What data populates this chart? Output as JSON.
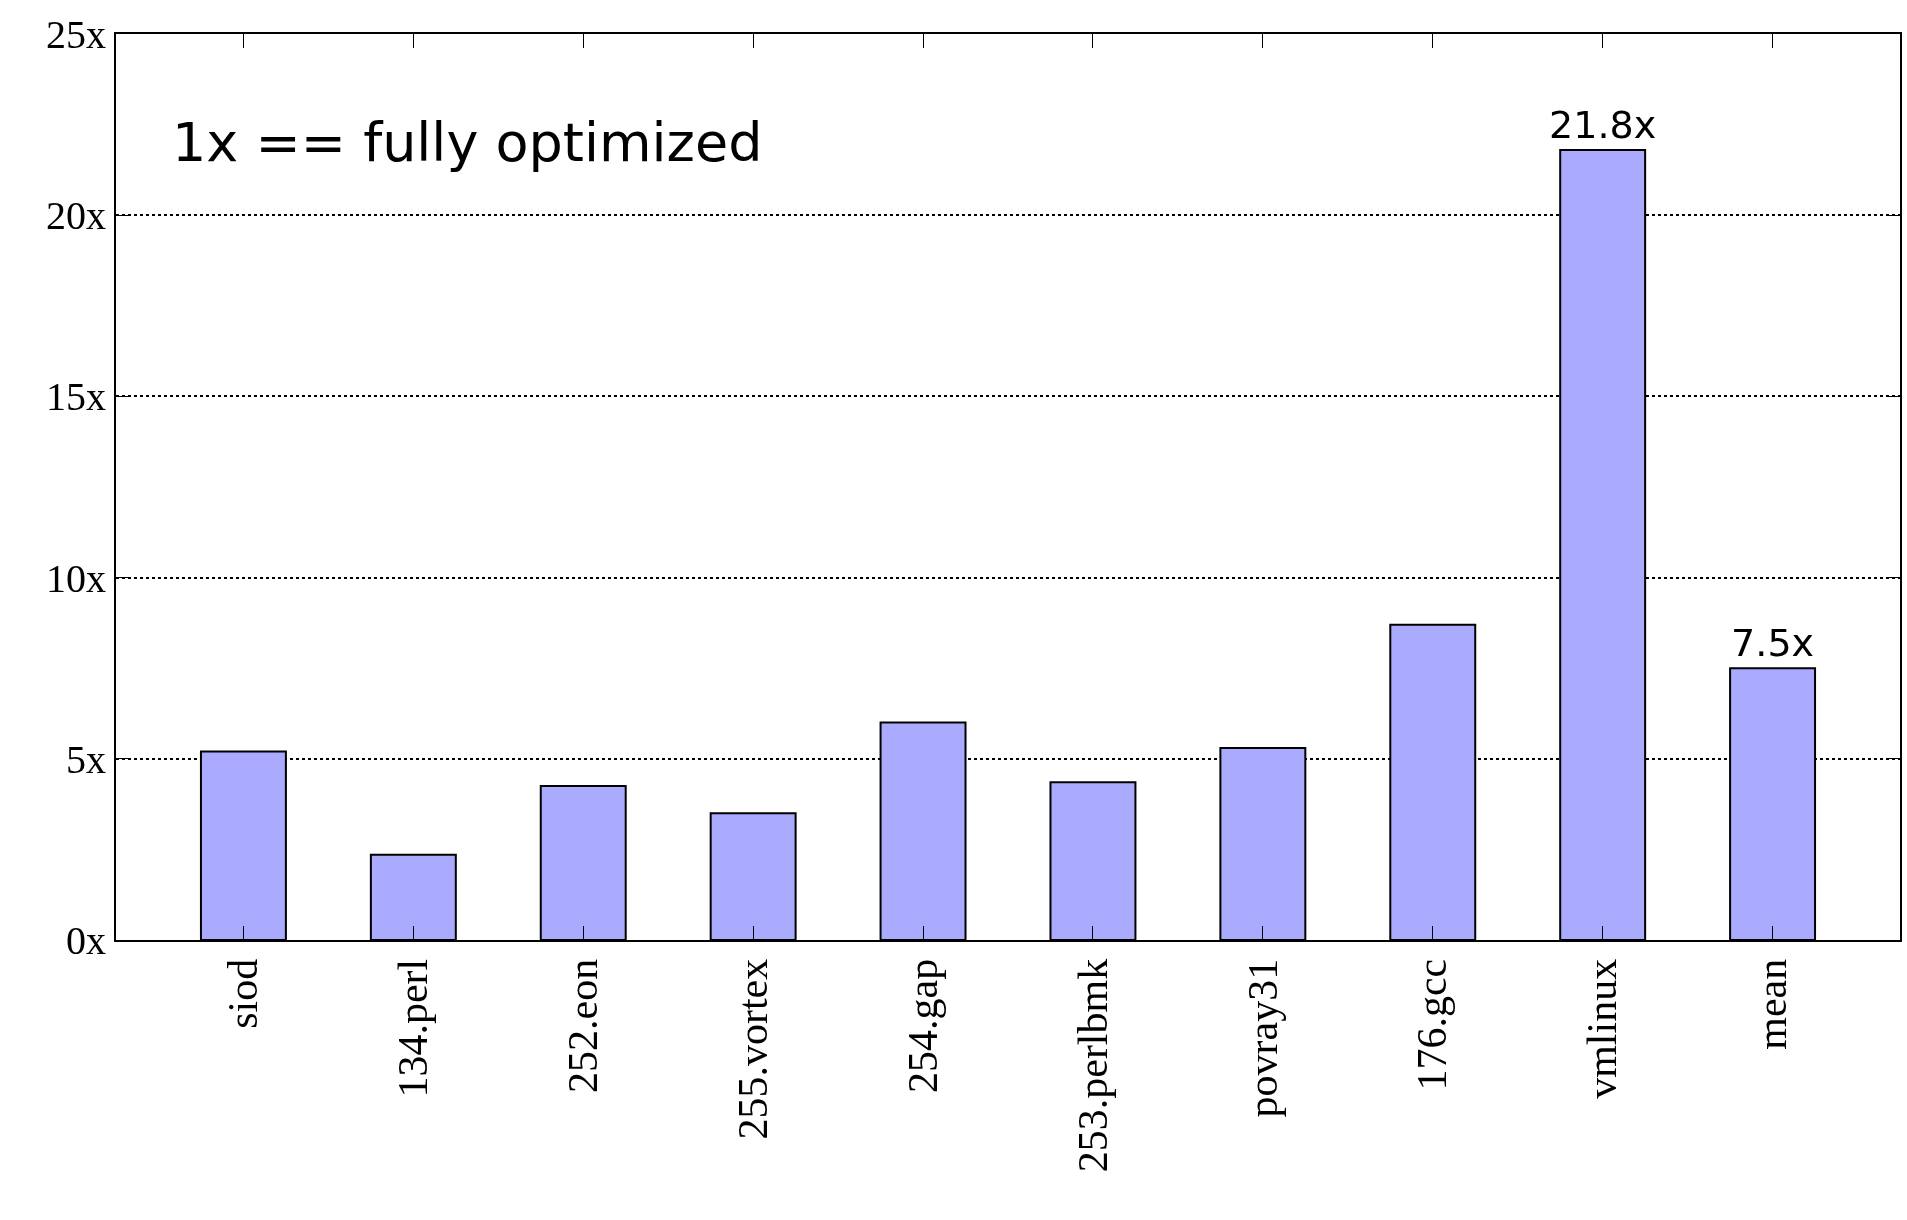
{
  "chart_data": {
    "type": "bar",
    "categories": [
      "siod",
      "134.perl",
      "252.eon",
      "255.vortex",
      "254.gap",
      "253.perlbmk",
      "povray31",
      "176.gcc",
      "vmlinux",
      "mean"
    ],
    "values": [
      5.2,
      2.35,
      4.25,
      3.5,
      6.0,
      4.35,
      5.3,
      8.7,
      21.8,
      7.5
    ],
    "value_labels": [
      null,
      null,
      null,
      null,
      null,
      null,
      null,
      null,
      "21.8x",
      "7.5x"
    ],
    "color": "#aaaaff",
    "ylim": [
      0,
      25
    ],
    "yticks": [
      {
        "value": 0,
        "label": "0x"
      },
      {
        "value": 5,
        "label": "5x"
      },
      {
        "value": 10,
        "label": "10x"
      },
      {
        "value": 15,
        "label": "15x"
      },
      {
        "value": 20,
        "label": "20x"
      },
      {
        "value": 25,
        "label": "25x"
      }
    ],
    "grid": "y",
    "annotations": [
      "1x == fully optimized"
    ]
  }
}
